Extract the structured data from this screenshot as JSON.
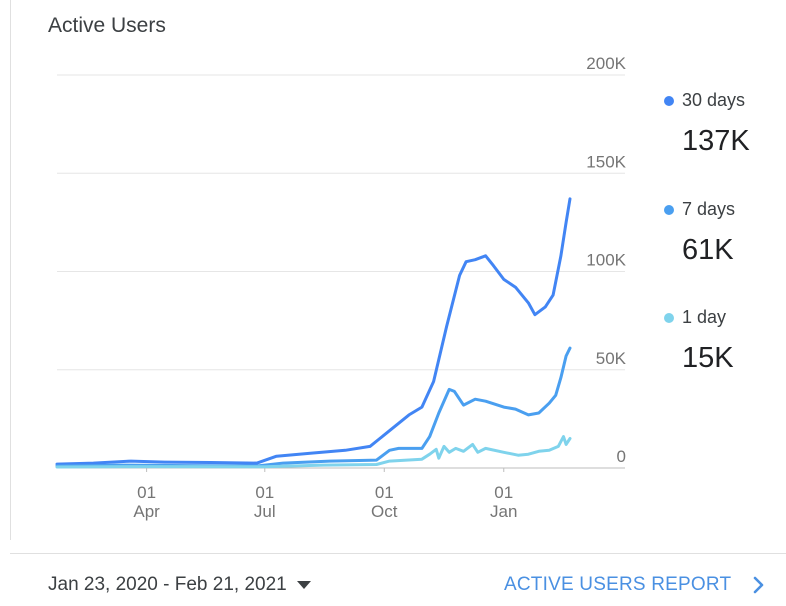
{
  "card": {
    "title": "Active Users"
  },
  "legend": [
    {
      "label": "30 days",
      "value": "137K",
      "color": "#4285f4"
    },
    {
      "label": "7 days",
      "value": "61K",
      "color": "#4a9ff0"
    },
    {
      "label": "1 day",
      "value": "15K",
      "color": "#7fd3ec"
    }
  ],
  "footer": {
    "date_range": "Jan 23, 2020 - Feb 21, 2021",
    "report_link": "ACTIVE USERS REPORT"
  },
  "chart_data": {
    "type": "line",
    "title": "Active Users",
    "ylim": [
      0,
      200000
    ],
    "y_ticks": [
      0,
      50000,
      100000,
      150000,
      200000
    ],
    "y_tick_labels": [
      "0",
      "50K",
      "100K",
      "150K",
      "200K"
    ],
    "y_axis_side": "right",
    "x_range": [
      "2020-01-23",
      "2021-02-21"
    ],
    "x_ticks": [
      {
        "date": "2020-04-01",
        "day": "01",
        "month": "Apr"
      },
      {
        "date": "2020-07-01",
        "day": "01",
        "month": "Jul"
      },
      {
        "date": "2020-10-01",
        "day": "01",
        "month": "Oct"
      },
      {
        "date": "2021-01-01",
        "day": "01",
        "month": "Jan"
      }
    ],
    "grid": true,
    "legend_position": "right",
    "series": [
      {
        "name": "30 days",
        "color": "#4285f4",
        "points": [
          [
            "2020-01-23",
            2000
          ],
          [
            "2020-02-20",
            2500
          ],
          [
            "2020-03-20",
            3500
          ],
          [
            "2020-04-15",
            3000
          ],
          [
            "2020-05-20",
            2800
          ],
          [
            "2020-06-25",
            2500
          ],
          [
            "2020-07-10",
            6000
          ],
          [
            "2020-08-05",
            7500
          ],
          [
            "2020-09-01",
            9000
          ],
          [
            "2020-09-20",
            11000
          ],
          [
            "2020-10-05",
            19000
          ],
          [
            "2020-10-20",
            27000
          ],
          [
            "2020-10-30",
            31000
          ],
          [
            "2020-11-08",
            44000
          ],
          [
            "2020-11-18",
            72000
          ],
          [
            "2020-11-28",
            98000
          ],
          [
            "2020-12-03",
            105000
          ],
          [
            "2020-12-10",
            106000
          ],
          [
            "2020-12-18",
            108000
          ],
          [
            "2020-12-24",
            103000
          ],
          [
            "2021-01-01",
            96000
          ],
          [
            "2021-01-10",
            92000
          ],
          [
            "2021-01-20",
            84000
          ],
          [
            "2021-01-25",
            78000
          ],
          [
            "2021-02-02",
            82000
          ],
          [
            "2021-02-08",
            88000
          ],
          [
            "2021-02-14",
            108000
          ],
          [
            "2021-02-18",
            125000
          ],
          [
            "2021-02-21",
            137000
          ]
        ]
      },
      {
        "name": "7 days",
        "color": "#4a9ff0",
        "points": [
          [
            "2020-01-23",
            1000
          ],
          [
            "2020-03-15",
            1500
          ],
          [
            "2020-05-01",
            1200
          ],
          [
            "2020-06-25",
            1000
          ],
          [
            "2020-07-15",
            2500
          ],
          [
            "2020-08-20",
            3500
          ],
          [
            "2020-09-25",
            4000
          ],
          [
            "2020-10-05",
            9000
          ],
          [
            "2020-10-12",
            10000
          ],
          [
            "2020-10-30",
            10000
          ],
          [
            "2020-11-05",
            16000
          ],
          [
            "2020-11-12",
            28000
          ],
          [
            "2020-11-20",
            40000
          ],
          [
            "2020-11-24",
            39000
          ],
          [
            "2020-12-01",
            32000
          ],
          [
            "2020-12-10",
            35000
          ],
          [
            "2020-12-18",
            34000
          ],
          [
            "2021-01-01",
            31000
          ],
          [
            "2021-01-10",
            30000
          ],
          [
            "2021-01-20",
            27000
          ],
          [
            "2021-01-28",
            28000
          ],
          [
            "2021-02-05",
            33000
          ],
          [
            "2021-02-10",
            37000
          ],
          [
            "2021-02-14",
            46000
          ],
          [
            "2021-02-18",
            57000
          ],
          [
            "2021-02-21",
            61000
          ]
        ]
      },
      {
        "name": "1 day",
        "color": "#7fd3ec",
        "points": [
          [
            "2020-01-23",
            500
          ],
          [
            "2020-04-01",
            700
          ],
          [
            "2020-07-01",
            600
          ],
          [
            "2020-08-15",
            1500
          ],
          [
            "2020-09-25",
            1800
          ],
          [
            "2020-10-05",
            3500
          ],
          [
            "2020-10-30",
            4500
          ],
          [
            "2020-11-05",
            7000
          ],
          [
            "2020-11-10",
            9500
          ],
          [
            "2020-11-12",
            5000
          ],
          [
            "2020-11-16",
            11000
          ],
          [
            "2020-11-20",
            8000
          ],
          [
            "2020-11-25",
            10000
          ],
          [
            "2020-12-01",
            8500
          ],
          [
            "2020-12-08",
            12000
          ],
          [
            "2020-12-12",
            8000
          ],
          [
            "2020-12-18",
            10000
          ],
          [
            "2021-01-01",
            8000
          ],
          [
            "2021-01-12",
            6500
          ],
          [
            "2021-01-20",
            7000
          ],
          [
            "2021-01-28",
            8500
          ],
          [
            "2021-02-05",
            9000
          ],
          [
            "2021-02-12",
            11000
          ],
          [
            "2021-02-16",
            16000
          ],
          [
            "2021-02-18",
            12000
          ],
          [
            "2021-02-21",
            15000
          ]
        ]
      }
    ]
  }
}
